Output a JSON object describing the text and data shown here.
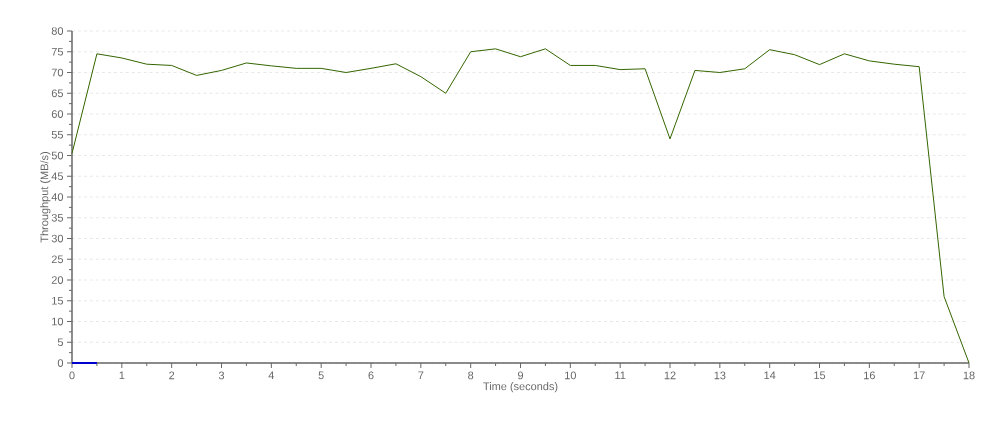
{
  "chart_data": {
    "type": "line",
    "xlabel": "Time (seconds)",
    "ylabel": "Throughput (MB/s)",
    "xlim": [
      0,
      18
    ],
    "ylim": [
      0,
      80
    ],
    "xticks": [
      0,
      1,
      2,
      3,
      4,
      5,
      6,
      7,
      8,
      9,
      10,
      11,
      12,
      13,
      14,
      15,
      16,
      17,
      18
    ],
    "yticks": [
      0,
      5,
      10,
      15,
      20,
      25,
      30,
      35,
      40,
      45,
      50,
      55,
      60,
      65,
      70,
      75,
      80
    ],
    "grid": "y",
    "line_style": "solid",
    "marker": "none",
    "series": [
      {
        "color": "#336600",
        "x": [
          0,
          0.5,
          1,
          1.5,
          2,
          2.5,
          3,
          3.5,
          4,
          4.5,
          5,
          5.5,
          6,
          6.5,
          7,
          7.5,
          8,
          8.5,
          9,
          9.5,
          10,
          10.5,
          11,
          11.5,
          12,
          12.5,
          13,
          13.5,
          14,
          14.5,
          15,
          15.5,
          16,
          16.5,
          17,
          17.5,
          18
        ],
        "values": [
          50.5,
          74.5,
          73.5,
          72,
          71.7,
          69.3,
          70.5,
          72.3,
          71.6,
          71,
          71,
          70,
          71,
          72.1,
          69,
          65,
          75,
          75.7,
          73.8,
          75.7,
          71.7,
          71.7,
          70.7,
          70.9,
          54,
          70.5,
          70,
          70.9,
          75.5,
          74.3,
          71.9,
          74.5,
          72.8,
          72,
          71.4,
          16,
          0
        ]
      },
      {
        "color": "#0000cc",
        "x": [
          0,
          0.5
        ],
        "values": [
          0,
          0
        ]
      }
    ]
  }
}
